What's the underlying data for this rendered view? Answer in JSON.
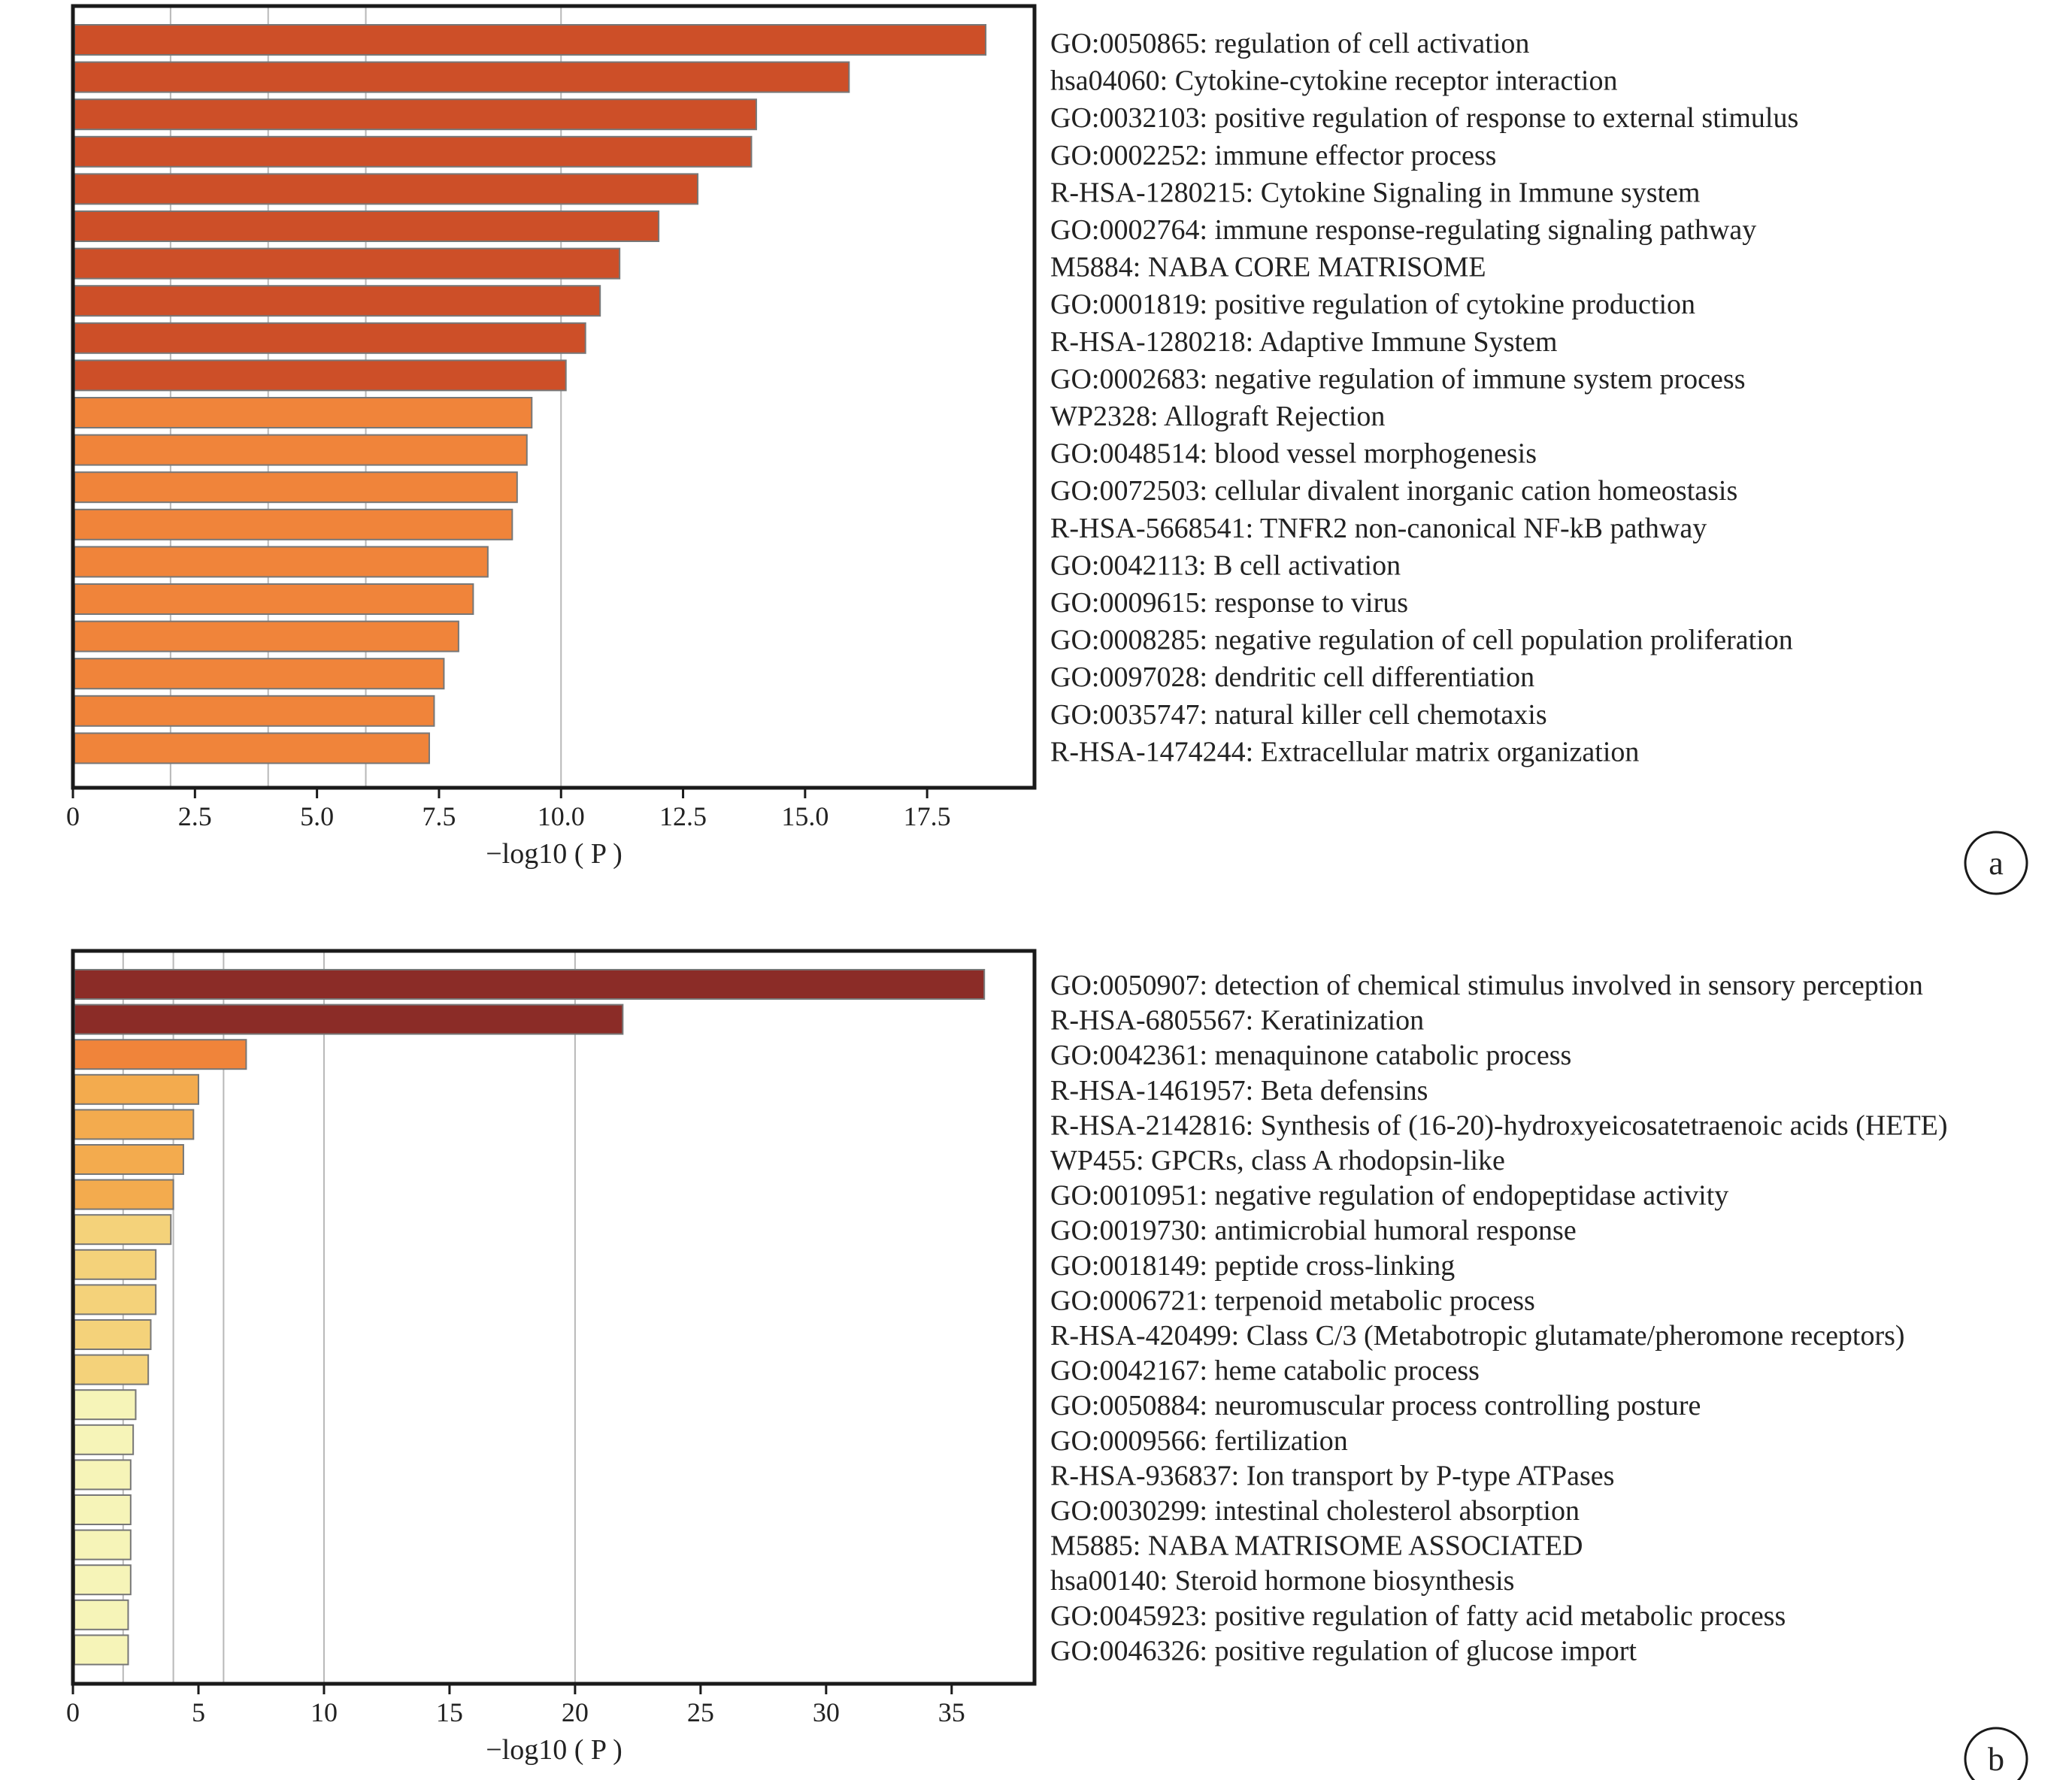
{
  "chart_data": [
    {
      "type": "bar",
      "orientation": "horizontal",
      "panel_label": "a",
      "xlabel": "−log10 ( P )",
      "xlim": [
        0,
        19.7
      ],
      "xticks": [
        "0",
        "2.5",
        "5.0",
        "7.5",
        "10.0",
        "12.5",
        "15.0",
        "17.5"
      ],
      "xtick_values": [
        0,
        2.5,
        5.0,
        7.5,
        10.0,
        12.5,
        15.0,
        17.5
      ],
      "gridlines": [
        2,
        4,
        6,
        10
      ],
      "categories": [
        "GO:0050865: regulation of cell activation",
        "hsa04060: Cytokine-cytokine receptor interaction",
        "GO:0032103: positive regulation of response to external stimulus",
        "GO:0002252: immune effector process",
        "R-HSA-1280215: Cytokine Signaling in Immune system",
        "GO:0002764: immune response-regulating signaling pathway",
        "M5884: NABA CORE MATRISOME",
        "GO:0001819: positive regulation of cytokine production",
        "R-HSA-1280218: Adaptive Immune System",
        "GO:0002683: negative regulation of immune system process",
        "WP2328: Allograft Rejection",
        "GO:0048514: blood vessel morphogenesis",
        "GO:0072503: cellular divalent inorganic cation homeostasis",
        "R-HSA-5668541: TNFR2 non-canonical NF-kB pathway",
        "GO:0042113: B cell activation",
        "GO:0009615: response to virus",
        "GO:0008285: negative regulation of cell population proliferation",
        "GO:0097028: dendritic cell differentiation",
        "GO:0035747: natural killer cell chemotaxis",
        "R-HSA-1474244: Extracellular matrix organization"
      ],
      "values": [
        18.7,
        15.9,
        14.0,
        13.9,
        12.8,
        12.0,
        11.2,
        10.8,
        10.5,
        10.1,
        9.4,
        9.3,
        9.1,
        9.0,
        8.5,
        8.2,
        7.9,
        7.6,
        7.4,
        7.3
      ],
      "colors": [
        "#cd4f28",
        "#cd4f28",
        "#cd4f28",
        "#cd4f28",
        "#cd4f28",
        "#cd4f28",
        "#cd4f28",
        "#cd4f28",
        "#cd4f28",
        "#cd4f28",
        "#f0843a",
        "#f0843a",
        "#f0843a",
        "#f0843a",
        "#f0843a",
        "#f0843a",
        "#f0843a",
        "#f0843a",
        "#f0843a",
        "#f0843a"
      ]
    },
    {
      "type": "bar",
      "orientation": "horizontal",
      "panel_label": "b",
      "xlabel": "−log10 ( P )",
      "xlim": [
        0,
        38.3
      ],
      "xticks": [
        "0",
        "5",
        "10",
        "15",
        "20",
        "25",
        "30",
        "35"
      ],
      "xtick_values": [
        0,
        5,
        10,
        15,
        20,
        25,
        30,
        35
      ],
      "gridlines": [
        2,
        4,
        6,
        10,
        20
      ],
      "categories": [
        "GO:0050907: detection of chemical stimulus involved in sensory perception",
        "R-HSA-6805567: Keratinization",
        "GO:0042361: menaquinone catabolic process",
        "R-HSA-1461957: Beta defensins",
        "R-HSA-2142816: Synthesis of (16-20)-hydroxyeicosatetraenoic acids (HETE)",
        "WP455: GPCRs, class A rhodopsin-like",
        "GO:0010951: negative regulation of endopeptidase activity",
        "GO:0019730: antimicrobial humoral response",
        "GO:0018149: peptide cross-linking",
        "GO:0006721: terpenoid metabolic process",
        "R-HSA-420499: Class C/3 (Metabotropic glutamate/pheromone receptors)",
        "GO:0042167: heme catabolic process",
        "GO:0050884: neuromuscular process controlling posture",
        "GO:0009566: fertilization",
        "R-HSA-936837: Ion transport by P-type ATPases",
        "GO:0030299: intestinal cholesterol absorption",
        "M5885: NABA MATRISOME ASSOCIATED",
        "hsa00140: Steroid hormone biosynthesis",
        "GO:0045923: positive regulation of fatty acid metabolic process",
        "GO:0046326: positive regulation of glucose import"
      ],
      "values": [
        36.3,
        21.9,
        6.9,
        5.0,
        4.8,
        4.4,
        4.0,
        3.9,
        3.3,
        3.3,
        3.1,
        3.0,
        2.5,
        2.4,
        2.3,
        2.3,
        2.3,
        2.3,
        2.2,
        2.2
      ],
      "colors": [
        "#8b2c27",
        "#8b2c27",
        "#f0843a",
        "#f3ab4e",
        "#f3ab4e",
        "#f3ab4e",
        "#f3ab4e",
        "#f4d27a",
        "#f4d27a",
        "#f4d27a",
        "#f4d27a",
        "#f4d27a",
        "#f6f4b8",
        "#f6f4b8",
        "#f6f4b8",
        "#f6f4b8",
        "#f6f4b8",
        "#f6f4b8",
        "#f6f4b8",
        "#f6f4b8"
      ]
    }
  ]
}
